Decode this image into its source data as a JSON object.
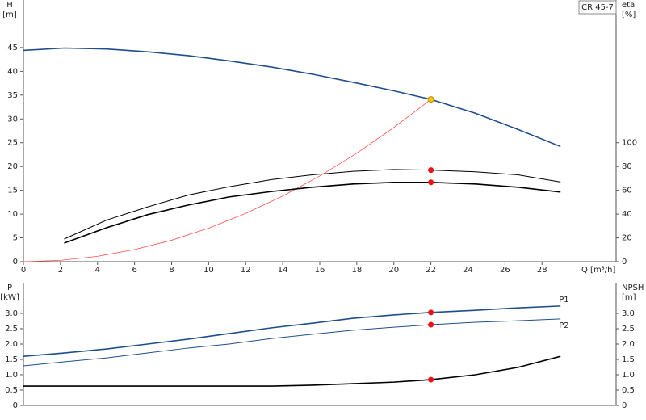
{
  "chart_data": [
    {
      "type": "line",
      "title": "CR 45-7",
      "ylabel": "H",
      "yunit": "[m]",
      "y2label": "eta",
      "y2unit": "[%]",
      "xlabel": "Q [m³/h]",
      "xlim": [
        0,
        32
      ],
      "xticks": [
        0,
        2,
        4,
        6,
        8,
        10,
        12,
        14,
        16,
        18,
        20,
        22,
        24,
        26,
        28
      ],
      "ylim": [
        0,
        55
      ],
      "yticks": [
        0,
        5,
        10,
        15,
        20,
        25,
        30,
        35,
        40,
        45
      ],
      "y2lim": [
        0,
        220
      ],
      "y2ticks": [
        0,
        20,
        40,
        60,
        80,
        100
      ],
      "series": [
        {
          "color": "#1f4e8c",
          "line_width": 1.6,
          "x": [
            0,
            2.2,
            4.5,
            6.7,
            8.9,
            11.1,
            13.4,
            15.6,
            17.8,
            20,
            22,
            24.4,
            26.7,
            29
          ],
          "values": [
            44.4,
            44.9,
            44.7,
            44.1,
            43.3,
            42.2,
            40.9,
            39.4,
            37.7,
            35.9,
            34.1,
            31.2,
            27.8,
            24.2
          ]
        },
        {
          "color": "#ff5050",
          "line_width": 0.8,
          "x": [
            0,
            2,
            4,
            6,
            8,
            10,
            12,
            14,
            16,
            18,
            20,
            22
          ],
          "values": [
            0,
            0.28,
            1.13,
            2.54,
            4.51,
            7.05,
            10.15,
            13.8,
            18.0,
            22.8,
            28.2,
            34.1
          ]
        },
        {
          "color": "#000000",
          "line_width": 1,
          "axis": "y2",
          "x": [
            2.2,
            4.5,
            6.7,
            8.9,
            11.1,
            13.4,
            15.6,
            17.8,
            20,
            22,
            24.4,
            26.7,
            29
          ],
          "values": [
            19,
            35,
            46,
            56,
            63,
            69,
            73,
            76,
            77.5,
            77,
            75.5,
            73,
            67
          ]
        },
        {
          "color": "#000000",
          "line_width": 1.6,
          "axis": "y2",
          "x": [
            2.2,
            4.5,
            6.7,
            8.9,
            11.1,
            13.4,
            15.6,
            17.8,
            20,
            22,
            24.4,
            26.7,
            29
          ],
          "values": [
            15.6,
            28.6,
            39.5,
            47.6,
            54.4,
            59,
            62.6,
            65.3,
            66.7,
            66.7,
            65.3,
            62.6,
            58.5
          ]
        },
        {
          "color": "#f5c518",
          "marker": true,
          "x": [
            22
          ],
          "values": [
            34.1
          ]
        },
        {
          "color": "#ee1111",
          "marker": true,
          "axis": "y2",
          "x": [
            22,
            22
          ],
          "values": [
            77,
            66.7
          ]
        }
      ]
    },
    {
      "type": "line",
      "ylabel": "P",
      "yunit": "[kW]",
      "y2label": "NPSH",
      "y2unit": "[m]",
      "xlim": [
        0,
        32
      ],
      "ylim": [
        0,
        4
      ],
      "yticks": [
        0,
        0.5,
        {
          "value": 1,
          "label": "1.0"
        },
        1.5,
        {
          "value": 2,
          "label": "2.0"
        },
        2.5,
        {
          "value": 3,
          "label": "3.0"
        }
      ],
      "y2lim": [
        0,
        4
      ],
      "y2ticks": [
        0,
        0.5,
        {
          "value": 1,
          "label": "1.0"
        },
        1.5,
        {
          "value": 2,
          "label": "2.0"
        },
        2.5,
        {
          "value": 3,
          "label": "3.0"
        }
      ],
      "series": [
        {
          "name": "P1",
          "color": "#1f4e8c",
          "line_width": 1.6,
          "x": [
            0,
            2.2,
            4.5,
            6.7,
            8.9,
            11.1,
            13.4,
            15.6,
            17.8,
            20,
            22,
            24.4,
            26.7,
            29
          ],
          "values": [
            1.6,
            1.71,
            1.84,
            2.0,
            2.16,
            2.34,
            2.53,
            2.68,
            2.84,
            2.95,
            3.03,
            3.1,
            3.18,
            3.24
          ]
        },
        {
          "name": "P2",
          "color": "#1f4e8c",
          "line_width": 1,
          "x": [
            0,
            2.2,
            4.5,
            6.7,
            8.9,
            11.1,
            13.4,
            15.6,
            17.8,
            20,
            22,
            24.4,
            26.7,
            29
          ],
          "values": [
            1.29,
            1.42,
            1.55,
            1.71,
            1.87,
            2.0,
            2.18,
            2.32,
            2.45,
            2.55,
            2.63,
            2.71,
            2.76,
            2.82
          ]
        },
        {
          "color": "#000000",
          "line_width": 1.6,
          "axis": "y2",
          "x": [
            0,
            11.1,
            13.4,
            15.6,
            17.8,
            20,
            22,
            24.4,
            26.7,
            29
          ],
          "values": [
            0.63,
            0.63,
            0.63,
            0.66,
            0.71,
            0.76,
            0.84,
            1.0,
            1.24,
            1.6
          ]
        },
        {
          "color": "#ee1111",
          "marker": true,
          "x": [
            22,
            22
          ],
          "values": [
            3.03,
            2.63
          ]
        },
        {
          "color": "#ee1111",
          "marker": true,
          "axis": "y2",
          "x": [
            22
          ],
          "values": [
            0.84
          ]
        }
      ]
    }
  ]
}
